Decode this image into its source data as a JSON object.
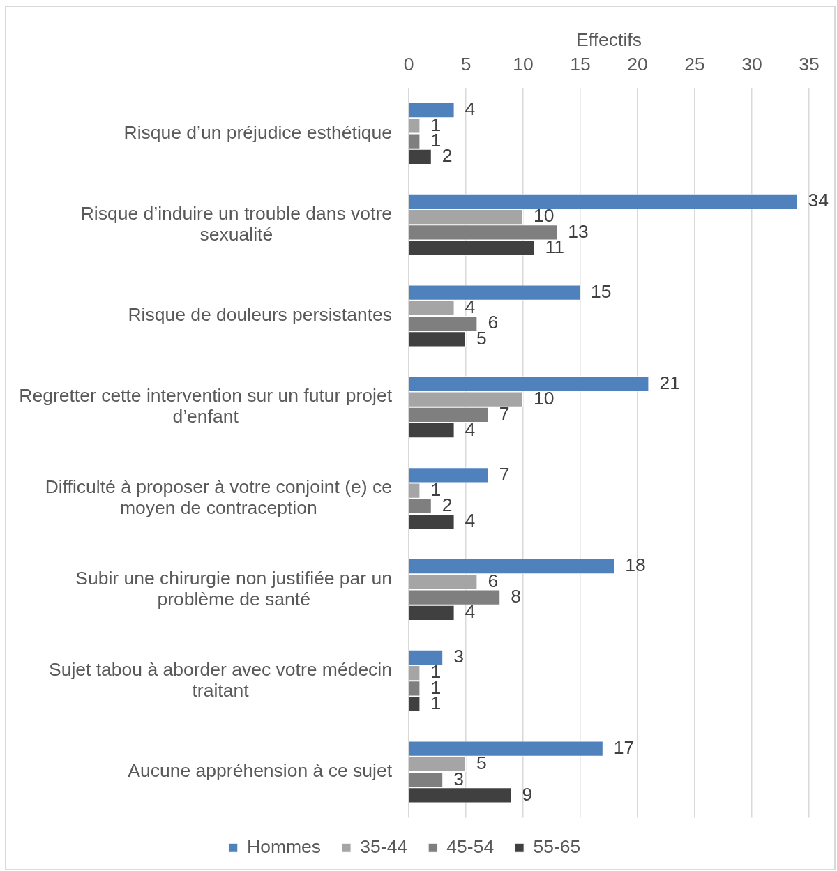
{
  "chart_data": {
    "type": "bar",
    "orientation": "horizontal",
    "xlabel": "Effectifs",
    "categories": [
      "Risque d’un préjudice esthétique",
      "Risque d’induire un trouble dans votre sexualité",
      "Risque de douleurs persistantes",
      "Regretter cette intervention sur un futur projet d’enfant",
      "Difficulté à proposer à votre conjoint (e) ce moyen de contraception",
      "Subir une chirurgie non justifiée par un problème de santé",
      "Sujet tabou à aborder avec votre médecin traitant",
      "Aucune appréhension à ce sujet"
    ],
    "series": [
      {
        "name": "Hommes",
        "color": "#4f81bd",
        "values": [
          4,
          34,
          15,
          21,
          7,
          18,
          3,
          17
        ]
      },
      {
        "name": "35-44",
        "color": "#a5a5a5",
        "values": [
          1,
          10,
          4,
          10,
          1,
          6,
          1,
          5
        ]
      },
      {
        "name": "45-54",
        "color": "#7f7f7f",
        "values": [
          1,
          13,
          6,
          7,
          2,
          8,
          1,
          3
        ]
      },
      {
        "name": "55-65",
        "color": "#404040",
        "values": [
          2,
          11,
          5,
          4,
          4,
          4,
          1,
          9
        ]
      }
    ],
    "xlim": [
      0,
      35
    ],
    "xticks": [
      0,
      5,
      10,
      15,
      20,
      25,
      30,
      35
    ],
    "grid": "x",
    "legend": "bottom",
    "data_labels": true
  }
}
